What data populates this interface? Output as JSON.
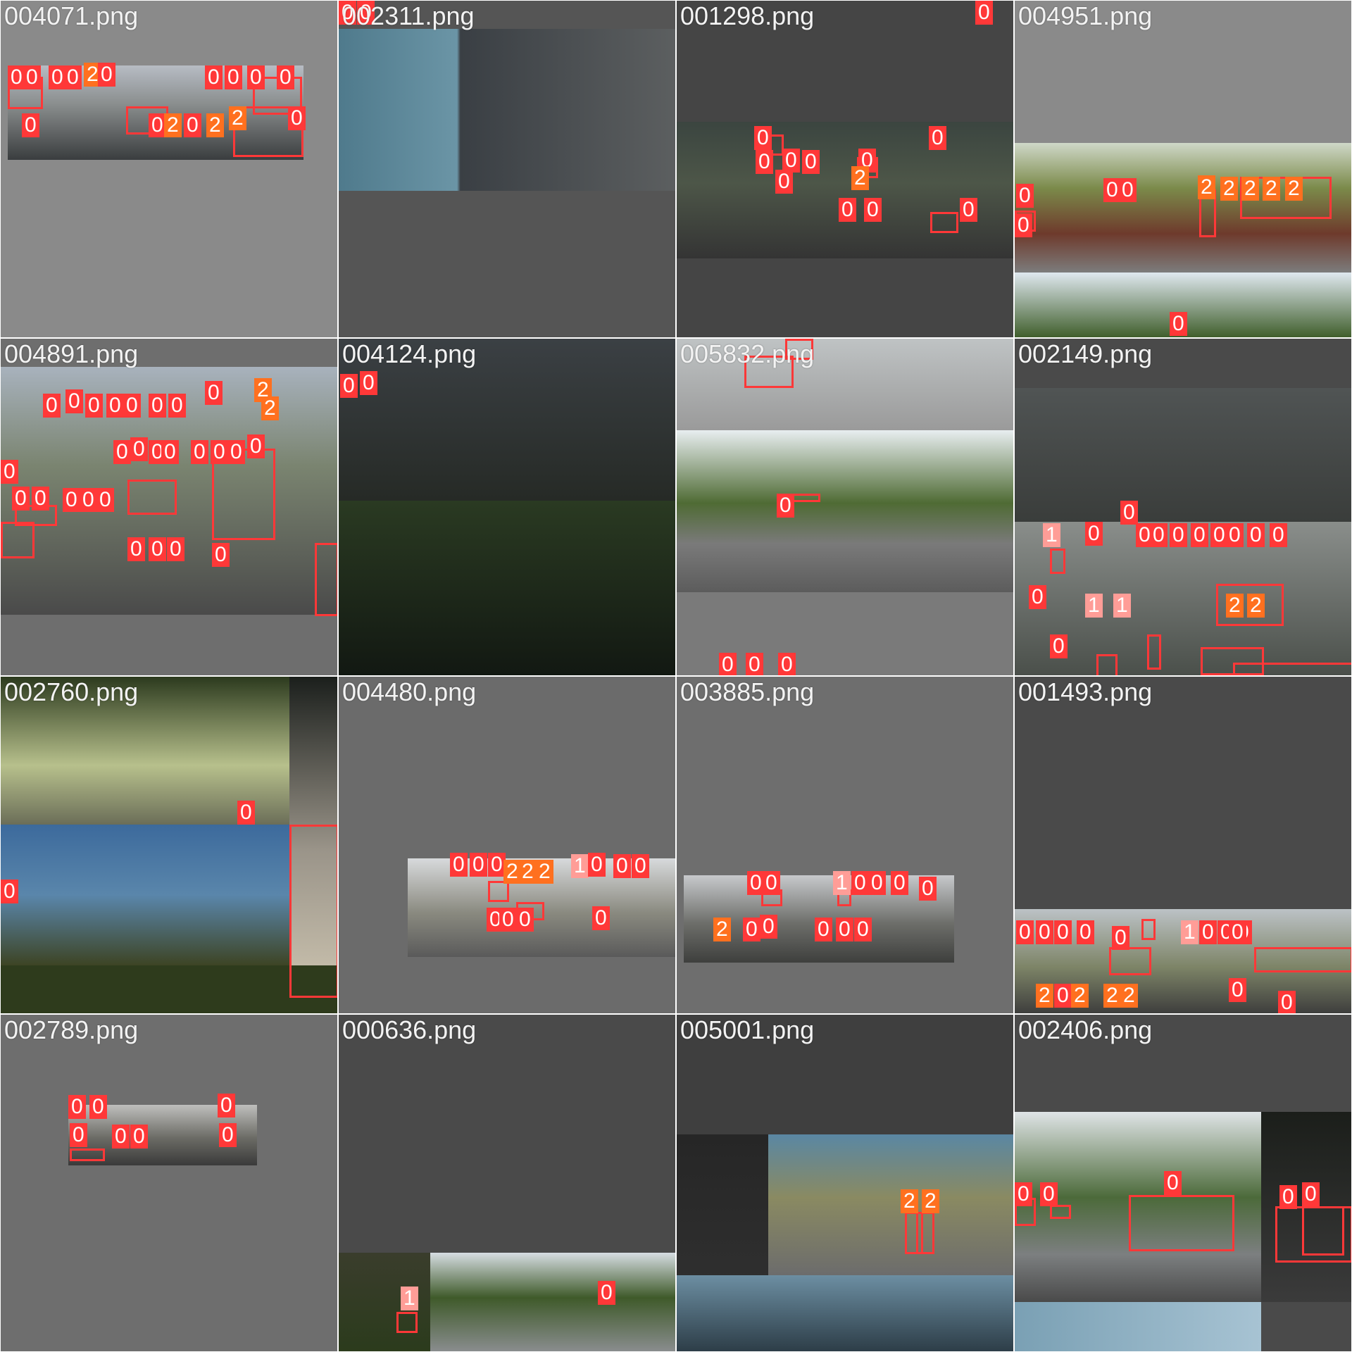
{
  "class_colors": {
    "0": "#ff3838",
    "1": "#ff9d97",
    "2": "#ff701f"
  },
  "label_text_color": "#ffffff",
  "tiles": [
    {
      "filename": "004071.png",
      "labels": [
        "0",
        "0",
        "0",
        "0",
        "2",
        "0",
        "0",
        "0",
        "0",
        "0",
        "0",
        "0",
        "2",
        "0",
        "2",
        "2",
        "0"
      ],
      "label_classes": [
        0,
        0,
        0,
        0,
        2,
        0,
        0,
        0,
        0,
        0,
        0,
        0,
        2,
        0,
        2,
        2,
        0
      ]
    },
    {
      "filename": "002311.png",
      "labels": [
        "0",
        "0"
      ],
      "label_classes": [
        0,
        0
      ]
    },
    {
      "filename": "001298.png",
      "labels": [
        "0",
        "0",
        "0",
        "0",
        "0",
        "0",
        "2",
        "0",
        "0",
        "0",
        "0",
        "0"
      ],
      "label_classes": [
        0,
        0,
        0,
        0,
        0,
        0,
        2,
        0,
        0,
        0,
        0,
        0
      ]
    },
    {
      "filename": "004951.png",
      "labels": [
        "0",
        "0",
        "0",
        "2",
        "2",
        "2",
        "2",
        "2",
        "0",
        "0"
      ],
      "label_classes": [
        0,
        0,
        0,
        2,
        2,
        2,
        2,
        2,
        0,
        0
      ]
    },
    {
      "filename": "004891.png",
      "labels": [
        "0",
        "0",
        "0",
        "0",
        "0",
        "0",
        "0",
        "0",
        "2",
        "2",
        "0",
        "0",
        "0",
        "0",
        "0",
        "0",
        "0",
        "0",
        "0",
        "0",
        "0",
        "0",
        "0",
        "0",
        "0",
        "0",
        "0",
        "0"
      ],
      "label_classes": [
        0,
        0,
        0,
        0,
        0,
        0,
        0,
        0,
        2,
        2,
        0,
        0,
        0,
        0,
        0,
        0,
        0,
        0,
        0,
        0,
        0,
        0,
        0,
        0,
        0,
        0,
        0,
        0
      ]
    },
    {
      "filename": "004124.png",
      "labels": [
        "0",
        "0"
      ],
      "label_classes": [
        0,
        0
      ]
    },
    {
      "filename": "005832.png",
      "labels": [
        "0",
        "0",
        "0",
        "0"
      ],
      "label_classes": [
        0,
        0,
        0,
        0
      ]
    },
    {
      "filename": "002149.png",
      "labels": [
        "1",
        "0",
        "0",
        "0",
        "0",
        "0",
        "0",
        "0",
        "0",
        "0",
        "0",
        "1",
        "1",
        "2",
        "2",
        "0",
        "0"
      ],
      "label_classes": [
        1,
        0,
        0,
        0,
        0,
        0,
        0,
        0,
        0,
        0,
        0,
        1,
        1,
        2,
        2,
        0,
        0
      ]
    },
    {
      "filename": "002760.png",
      "labels": [
        "0",
        "0"
      ],
      "label_classes": [
        0,
        0
      ]
    },
    {
      "filename": "004480.png",
      "labels": [
        "0",
        "0",
        "0",
        "2",
        "2",
        "2",
        "1",
        "0",
        "0",
        "0",
        "0",
        "0",
        "0",
        "0"
      ],
      "label_classes": [
        0,
        0,
        0,
        2,
        2,
        2,
        1,
        0,
        0,
        0,
        0,
        0,
        0,
        0
      ]
    },
    {
      "filename": "003885.png",
      "labels": [
        "0",
        "0",
        "1",
        "0",
        "0",
        "0",
        "2",
        "0",
        "0",
        "0",
        "0",
        "0",
        "0"
      ],
      "label_classes": [
        0,
        0,
        1,
        0,
        0,
        0,
        2,
        0,
        0,
        0,
        0,
        0,
        0
      ]
    },
    {
      "filename": "001493.png",
      "labels": [
        "0",
        "0",
        "0",
        "0",
        "0",
        "1",
        "0",
        "0",
        "0",
        "0",
        "2",
        "0",
        "2",
        "2",
        "2",
        "0",
        "0"
      ],
      "label_classes": [
        0,
        0,
        0,
        0,
        0,
        1,
        0,
        0,
        0,
        0,
        2,
        0,
        2,
        2,
        2,
        0,
        0
      ]
    },
    {
      "filename": "002789.png",
      "labels": [
        "0",
        "0",
        "0",
        "0",
        "0",
        "0",
        "0"
      ],
      "label_classes": [
        0,
        0,
        0,
        0,
        0,
        0,
        0
      ]
    },
    {
      "filename": "000636.png",
      "labels": [
        "1",
        "0"
      ],
      "label_classes": [
        1,
        0
      ]
    },
    {
      "filename": "005001.png",
      "labels": [
        "2",
        "2"
      ],
      "label_classes": [
        2,
        2
      ]
    },
    {
      "filename": "002406.png",
      "labels": [
        "0",
        "0",
        "0",
        "0",
        "0"
      ],
      "label_classes": [
        0,
        0,
        0,
        0,
        0
      ]
    }
  ]
}
